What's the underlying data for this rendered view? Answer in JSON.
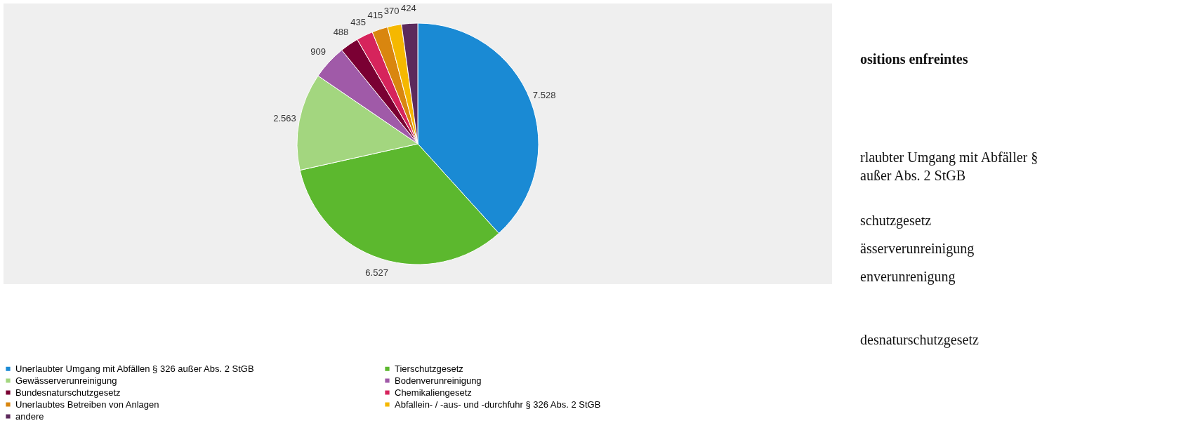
{
  "chart_data": {
    "type": "pie",
    "categories": [
      "Unerlaubter Umgang mit Abfällen § 326 außer Abs. 2 StGB",
      "Tierschutzgesetz",
      "Gewässerverunreinigung",
      "Bodenverunreinigung",
      "Bundesnaturschutzgesetz",
      "Chemikaliengesetz",
      "Unerlaubtes Betreiben von Anlagen",
      "Abfallein- / -aus- und -durchfuhr § 326 Abs. 2 StGB",
      "andere"
    ],
    "values": [
      7528,
      6527,
      2563,
      909,
      488,
      435,
      415,
      370,
      424
    ],
    "value_labels": [
      "7.528",
      "6.527",
      "2.563",
      "909",
      "488",
      "435",
      "415",
      "370",
      "424"
    ],
    "colors": [
      "#1a8ad4",
      "#5cb82e",
      "#a3d67f",
      "#a05aa8",
      "#7a0033",
      "#d6245c",
      "#d9860f",
      "#f5b800",
      "#5c2a5c"
    ],
    "legend": "bottom",
    "annotations": [
      "ositions enfreintes",
      "rlaubter Umgang mit Abfäller §",
      "außer Abs. 2 StGB",
      "schutzgesetz",
      "ässerverunreinigung",
      "enverunrenigung",
      "desnaturschutzgesetz"
    ]
  }
}
